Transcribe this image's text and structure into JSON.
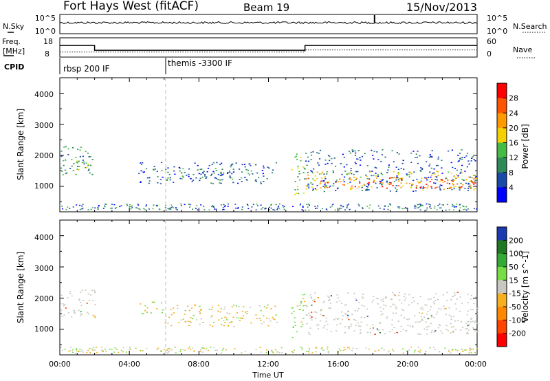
{
  "header": {
    "station": "Fort Hays West (fitACF)",
    "beam": "Beam 19",
    "date": "15/Nov/2013"
  },
  "noise_panel": {
    "left_label": "N.Sky",
    "right_label": "N.Search",
    "left_ticks": [
      "10^5",
      "10^0"
    ],
    "right_ticks": [
      "10^5",
      "10^0"
    ]
  },
  "freq_panel": {
    "left_label_line1": "Freq.",
    "left_label_line2": "[MHz]",
    "right_label": "Nave",
    "left_ticks": [
      "18",
      "8"
    ],
    "right_ticks": [
      "60",
      "0"
    ],
    "freq_steps": [
      {
        "from": 0,
        "to": 2,
        "value": 14.5
      },
      {
        "from": 2,
        "to": 14.1,
        "value": 11.8
      },
      {
        "from": 14.1,
        "to": 24,
        "value": 14.5
      }
    ],
    "nave_steps": [
      {
        "from": 0,
        "to": 14.1,
        "value": 17
      },
      {
        "from": 14.1,
        "to": 24,
        "value": 24
      }
    ]
  },
  "cpid": {
    "label": "CPID",
    "segments": [
      {
        "start": 0,
        "label": "rbsp 200 IF"
      },
      {
        "start": 6.1,
        "label": "themis -3300 IF"
      }
    ]
  },
  "chart_data": [
    {
      "type": "heatmap",
      "parameter": "Power",
      "ylabel": "Slant Range [km]",
      "xlabel": "",
      "xlim": [
        0,
        24
      ],
      "ylim": [
        180,
        4500
      ],
      "yticks": [
        "1000",
        "2000",
        "3000",
        "4000"
      ],
      "colorbar": {
        "label": "Power [dB]",
        "ticks": [
          "4",
          "8",
          "12",
          "16",
          "20",
          "24",
          "28"
        ],
        "colors": [
          "#0000ff",
          "#1a4aa8",
          "#2e8b57",
          "#44bb44",
          "#f5d000",
          "#ff9900",
          "#ff5500",
          "#ff0000"
        ]
      },
      "regions": [
        {
          "t": [
            0,
            2
          ],
          "r": [
            1350,
            2300
          ],
          "level": 2
        },
        {
          "t": [
            0.3,
            1.9
          ],
          "r": [
            1500,
            1900
          ],
          "level": 3
        },
        {
          "t": [
            4.5,
            12.5
          ],
          "r": [
            1100,
            1800
          ],
          "level": 1
        },
        {
          "t": [
            6,
            11
          ],
          "r": [
            1200,
            1600
          ],
          "level": 2
        },
        {
          "t": [
            13.3,
            14.1
          ],
          "r": [
            750,
            2200
          ],
          "level": 3
        },
        {
          "t": [
            14.1,
            24
          ],
          "r": [
            850,
            2200
          ],
          "level": 1
        },
        {
          "t": [
            14.1,
            24
          ],
          "r": [
            900,
            1500
          ],
          "level": 4
        },
        {
          "t": [
            14.1,
            24
          ],
          "r": [
            950,
            1300
          ],
          "level": 6
        }
      ]
    },
    {
      "type": "heatmap",
      "parameter": "Velocity",
      "ylabel": "Slant Range [km]",
      "xlabel": "Time UT",
      "xlim": [
        0,
        24
      ],
      "ylim": [
        180,
        4500
      ],
      "xticks": [
        "00:00",
        "04:00",
        "08:00",
        "12:00",
        "16:00",
        "20:00",
        "00:00"
      ],
      "yticks": [
        "1000",
        "2000",
        "3000",
        "4000"
      ],
      "colorbar": {
        "label": "Velocity [m s^-1]",
        "ticks": [
          "200",
          "100",
          "50",
          "15",
          "-15",
          "-50",
          "-100",
          "-200"
        ],
        "colors": [
          "#1a3bb0",
          "#227722",
          "#33aa33",
          "#77dd44",
          "#c8c8c0",
          "#f5b020",
          "#ff8800",
          "#ff4400",
          "#ff0000"
        ]
      },
      "regions": [
        {
          "t": [
            0,
            2
          ],
          "r": [
            1350,
            2300
          ],
          "class": "ground"
        },
        {
          "t": [
            4.5,
            6
          ],
          "r": [
            1500,
            1900
          ],
          "class": "positive"
        },
        {
          "t": [
            6,
            12.5
          ],
          "r": [
            1100,
            1800
          ],
          "class": "negative"
        },
        {
          "t": [
            13.3,
            14.1
          ],
          "r": [
            750,
            2200
          ],
          "class": "positive"
        },
        {
          "t": [
            14.1,
            24
          ],
          "r": [
            850,
            2200
          ],
          "class": "ground"
        }
      ]
    }
  ]
}
